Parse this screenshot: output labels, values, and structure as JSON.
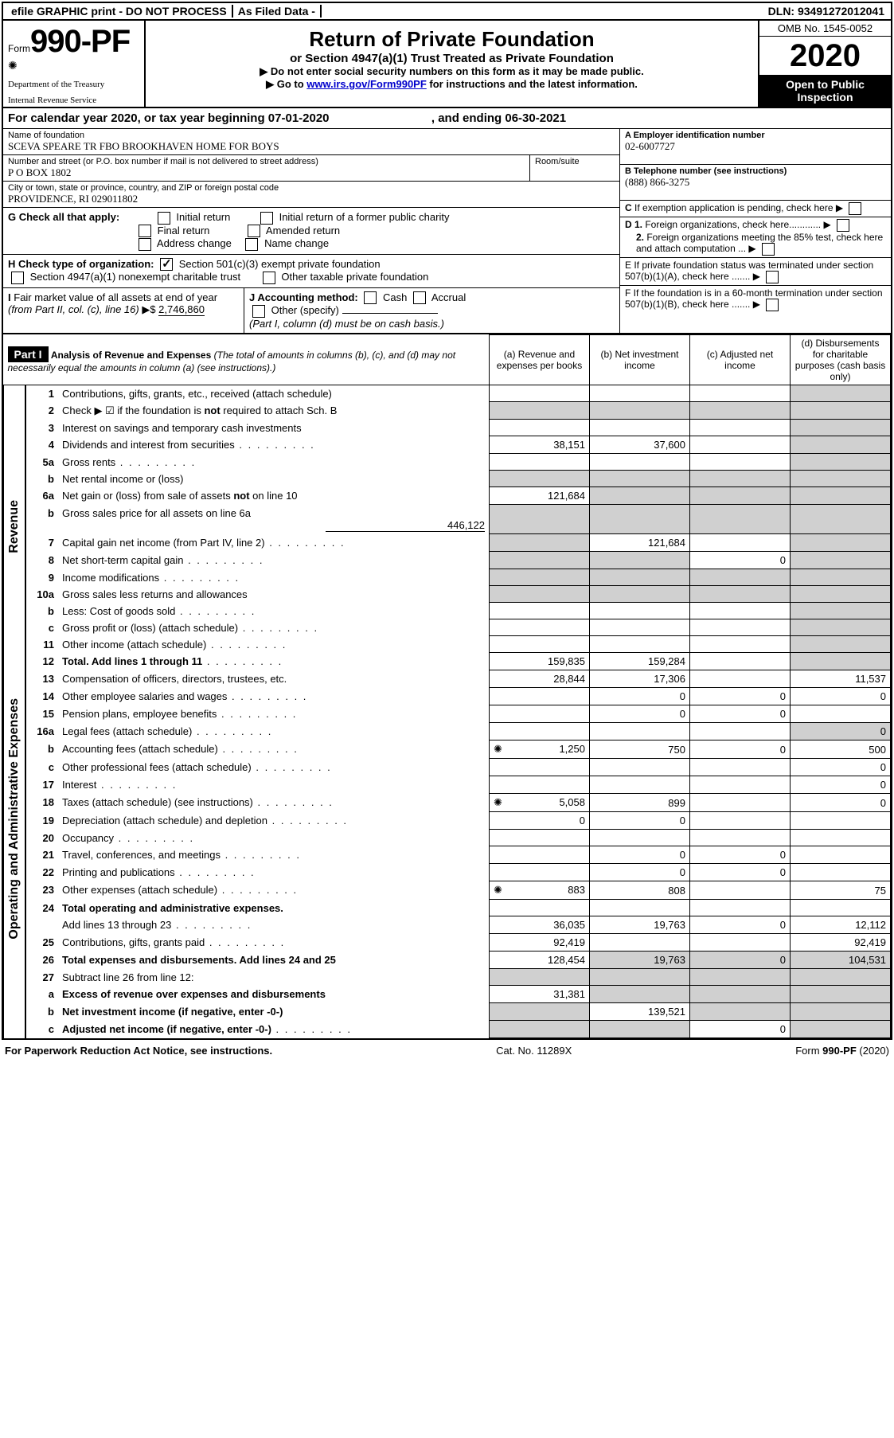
{
  "topbar": {
    "efile": "efile GRAPHIC print - DO NOT PROCESS",
    "asfiled": "As Filed Data -",
    "dln_label": "DLN:",
    "dln": "93491272012041"
  },
  "masthead": {
    "form_prefix": "Form",
    "form_number": "990-PF",
    "dept1": "Department of the Treasury",
    "dept2": "Internal Revenue Service",
    "title": "Return of Private Foundation",
    "subtitle": "or Section 4947(a)(1) Trust Treated as Private Foundation",
    "note1": "▶ Do not enter social security numbers on this form as it may be made public.",
    "note2_prefix": "▶ Go to ",
    "note2_link": "www.irs.gov/Form990PF",
    "note2_suffix": " for instructions and the latest information.",
    "omb": "OMB No. 1545-0052",
    "year": "2020",
    "inspection": "Open to Public Inspection"
  },
  "calyear": {
    "text1": "For calendar year 2020, or tax year beginning 07-01-2020",
    "text2": ", and ending 06-30-2021"
  },
  "header": {
    "name_label": "Name of foundation",
    "name": "SCEVA SPEARE TR FBO BROOKHAVEN HOME FOR BOYS",
    "addr_label": "Number and street (or P.O. box number if mail is not delivered to street address)",
    "addr": "P O BOX 1802",
    "room_label": "Room/suite",
    "room": "",
    "city_label": "City or town, state or province, country, and ZIP or foreign postal code",
    "city": "PROVIDENCE, RI  029011802",
    "a_label": "A Employer identification number",
    "a_value": "02-6007727",
    "b_label": "B Telephone number (see instructions)",
    "b_value": "(888) 866-3275",
    "c_label": "C If exemption application is pending, check here",
    "d1": "D 1. Foreign organizations, check here............",
    "d2": "2. Foreign organizations meeting the 85% test, check here and attach computation ...",
    "e": "E  If private foundation status was terminated under section 507(b)(1)(A), check here .......",
    "f": "F  If the foundation is in a 60-month termination under section 507(b)(1)(B), check here .......",
    "g_label": "G Check all that apply:",
    "g_opts": [
      "Initial return",
      "Initial return of a former public charity",
      "Final return",
      "Amended return",
      "Address change",
      "Name change"
    ],
    "h_label": "H Check type of organization:",
    "h_1": "Section 501(c)(3) exempt private foundation",
    "h_2": "Section 4947(a)(1) nonexempt charitable trust",
    "h_3": "Other taxable private foundation",
    "i_label": "I Fair market value of all assets at end of year (from Part II, col. (c), line 16) ▶$",
    "i_value": "2,746,860",
    "j_label": "J Accounting method:",
    "j_opts": [
      "Cash",
      "Accrual"
    ],
    "j_other": "Other (specify)",
    "j_note": "(Part I, column (d) must be on cash basis.)"
  },
  "part1": {
    "label": "Part I",
    "title": "Analysis of Revenue and Expenses",
    "note": "(The total of amounts in columns (b), (c), and (d) may not necessarily equal the amounts in column (a) (see instructions).)",
    "col_a": "(a)  Revenue and expenses per books",
    "col_b": "(b) Net investment income",
    "col_c": "(c) Adjusted net income",
    "col_d": "(d) Disbursements for charitable purposes (cash basis only)"
  },
  "side_labels": {
    "revenue": "Revenue",
    "opexp": "Operating and Administrative Expenses"
  },
  "rows": [
    {
      "ln": "1",
      "desc": "Contributions, gifts, grants, etc., received (attach schedule)",
      "a": "",
      "b": "",
      "c": "",
      "d": ""
    },
    {
      "ln": "2",
      "desc": "Check ▶ ☑ if the foundation is not required to attach Sch. B",
      "dotsExtra": true,
      "a": "",
      "b": "",
      "c": "",
      "d": ""
    },
    {
      "ln": "3",
      "desc": "Interest on savings and temporary cash investments",
      "a": "",
      "b": "",
      "c": "",
      "d": ""
    },
    {
      "ln": "4",
      "desc": "Dividends and interest from securities",
      "dots": true,
      "a": "38,151",
      "b": "37,600",
      "c": "",
      "d": ""
    },
    {
      "ln": "5a",
      "desc": "Gross rents",
      "dots": true,
      "a": "",
      "b": "",
      "c": "",
      "d": ""
    },
    {
      "ln": "b",
      "desc": "Net rental income or (loss)",
      "a": "",
      "b": "",
      "c": "",
      "d": ""
    },
    {
      "ln": "6a",
      "desc": "Net gain or (loss) from sale of assets not on line 10",
      "a": "121,684",
      "b": "",
      "c": "",
      "d": ""
    },
    {
      "ln": "b",
      "desc": "Gross sales price for all assets on line 6a",
      "sub": "446,122",
      "a": "",
      "b": "",
      "c": "",
      "d": ""
    },
    {
      "ln": "7",
      "desc": "Capital gain net income (from Part IV, line 2)",
      "dots": true,
      "a": "",
      "b": "121,684",
      "c": "",
      "d": ""
    },
    {
      "ln": "8",
      "desc": "Net short-term capital gain",
      "dots": true,
      "a": "",
      "b": "",
      "c": "0",
      "d": ""
    },
    {
      "ln": "9",
      "desc": "Income modifications",
      "dots": true,
      "a": "",
      "b": "",
      "c": "",
      "d": ""
    },
    {
      "ln": "10a",
      "desc": "Gross sales less returns and allowances",
      "a": "",
      "b": "",
      "c": "",
      "d": ""
    },
    {
      "ln": "b",
      "desc": "Less: Cost of goods sold",
      "dots": true,
      "a": "",
      "b": "",
      "c": "",
      "d": ""
    },
    {
      "ln": "c",
      "desc": "Gross profit or (loss) (attach schedule)",
      "dots": true,
      "a": "",
      "b": "",
      "c": "",
      "d": ""
    },
    {
      "ln": "11",
      "desc": "Other income (attach schedule)",
      "dots": true,
      "a": "",
      "b": "",
      "c": "",
      "d": ""
    },
    {
      "ln": "12",
      "desc": "Total. Add lines 1 through 11",
      "bold": true,
      "dots": true,
      "a": "159,835",
      "b": "159,284",
      "c": "",
      "d": ""
    },
    {
      "ln": "13",
      "desc": "Compensation of officers, directors, trustees, etc.",
      "a": "28,844",
      "b": "17,306",
      "c": "",
      "d": "11,537"
    },
    {
      "ln": "14",
      "desc": "Other employee salaries and wages",
      "dots": true,
      "a": "",
      "b": "0",
      "c": "0",
      "d": "0"
    },
    {
      "ln": "15",
      "desc": "Pension plans, employee benefits",
      "dots": true,
      "a": "",
      "b": "0",
      "c": "0",
      "d": ""
    },
    {
      "ln": "16a",
      "desc": "Legal fees (attach schedule)",
      "dots": true,
      "a": "",
      "b": "",
      "c": "",
      "d": "0"
    },
    {
      "ln": "b",
      "desc": "Accounting fees (attach schedule)",
      "dots": true,
      "icon": true,
      "a": "1,250",
      "b": "750",
      "c": "0",
      "d": "500"
    },
    {
      "ln": "c",
      "desc": "Other professional fees (attach schedule)",
      "dots": true,
      "a": "",
      "b": "",
      "c": "",
      "d": "0"
    },
    {
      "ln": "17",
      "desc": "Interest",
      "dots": true,
      "a": "",
      "b": "",
      "c": "",
      "d": "0"
    },
    {
      "ln": "18",
      "desc": "Taxes (attach schedule) (see instructions)",
      "dots": true,
      "icon": true,
      "a": "5,058",
      "b": "899",
      "c": "",
      "d": "0"
    },
    {
      "ln": "19",
      "desc": "Depreciation (attach schedule) and depletion",
      "dots": true,
      "a": "0",
      "b": "0",
      "c": "",
      "d": ""
    },
    {
      "ln": "20",
      "desc": "Occupancy",
      "dots": true,
      "a": "",
      "b": "",
      "c": "",
      "d": ""
    },
    {
      "ln": "21",
      "desc": "Travel, conferences, and meetings",
      "dots": true,
      "a": "",
      "b": "0",
      "c": "0",
      "d": ""
    },
    {
      "ln": "22",
      "desc": "Printing and publications",
      "dots": true,
      "a": "",
      "b": "0",
      "c": "0",
      "d": ""
    },
    {
      "ln": "23",
      "desc": "Other expenses (attach schedule)",
      "dots": true,
      "icon": true,
      "a": "883",
      "b": "808",
      "c": "",
      "d": "75"
    },
    {
      "ln": "24",
      "desc": "Total operating and administrative expenses.",
      "bold": true,
      "a": "",
      "b": "",
      "c": "",
      "d": ""
    },
    {
      "ln": "",
      "desc": "Add lines 13 through 23",
      "dots": true,
      "a": "36,035",
      "b": "19,763",
      "c": "0",
      "d": "12,112"
    },
    {
      "ln": "25",
      "desc": "Contributions, gifts, grants paid",
      "dots": true,
      "a": "92,419",
      "b": "",
      "c": "",
      "d": "92,419"
    },
    {
      "ln": "26",
      "desc": "Total expenses and disbursements. Add lines 24 and 25",
      "bold": true,
      "a": "128,454",
      "b": "19,763",
      "c": "0",
      "d": "104,531"
    },
    {
      "ln": "27",
      "desc": "Subtract line 26 from line 12:",
      "a": "",
      "b": "",
      "c": "",
      "d": ""
    },
    {
      "ln": "a",
      "desc": "Excess of revenue over expenses and disbursements",
      "bold": true,
      "a": "31,381",
      "b": "",
      "c": "",
      "d": ""
    },
    {
      "ln": "b",
      "desc": "Net investment income (if negative, enter -0-)",
      "bold": true,
      "a": "",
      "b": "139,521",
      "c": "",
      "d": ""
    },
    {
      "ln": "c",
      "desc": "Adjusted net income (if negative, enter -0-)",
      "bold": true,
      "dots": true,
      "a": "",
      "b": "",
      "c": "0",
      "d": ""
    }
  ],
  "footer": {
    "left": "For Paperwork Reduction Act Notice, see instructions.",
    "mid": "Cat. No. 11289X",
    "right_prefix": "Form ",
    "right_form": "990-PF",
    "right_suffix": " (2020)"
  }
}
